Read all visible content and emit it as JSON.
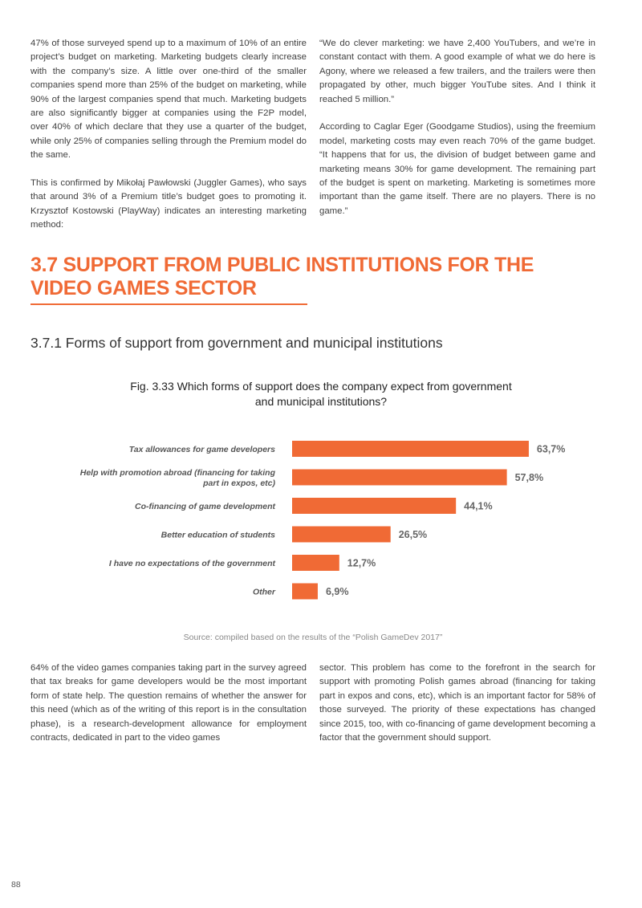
{
  "top_left_paragraphs": [
    "47% of those surveyed spend up to a maximum of 10% of an entire project’s budget on marketing. Marketing budgets clearly increase with the company’s size. A little over one-third of the smaller companies spend more than 25% of the budget on marketing, while 90% of the largest companies spend that much. Marketing budgets are also significantly bigger at companies using the F2P model, over 40% of which declare that they use a quarter of the budget, while only 25% of companies selling through the Premium model do the same.",
    "This is confirmed by Mikołaj Pawłowski (Juggler Games), who says that around 3% of a Premium title’s budget goes to promoting it. Krzysztof Kostowski (PlayWay) indicates an interesting marketing method:"
  ],
  "top_right_paragraphs": [
    "“We do clever marketing: we have 2,400 YouTubers, and we’re in constant contact with them. A good example of what we do here is Agony, where we released a few trailers, and the trailers were then propagated by other, much bigger YouTube sites. And I think it reached 5 million.”",
    "According to Caglar Eger (Goodgame Studios), using the freemium model, marketing costs may even reach 70% of the game budget. “It happens that for us, the division of budget between game and marketing means 30% for game development. The remaining part of the budget is spent on marketing. Marketing is sometimes more important than the game itself. There are no players. There is no game.”"
  ],
  "section_heading": "3.7 SUPPORT FROM PUBLIC INSTITUTIONS FOR THE VIDEO GAMES SECTOR",
  "sub_heading": "3.7.1 Forms of support from government and municipal institutions",
  "figure_title": "Fig. 3.33 Which forms of support does the company expect from government and municipal institutions?",
  "chart_data": {
    "type": "bar",
    "orientation": "horizontal",
    "categories": [
      "Tax allowances for game developers",
      "Help with promotion abroad (financing for taking part in expos, etc)",
      "Co-financing of game development",
      "Better education of students",
      "I have no expectations of the government",
      "Other"
    ],
    "category_lines": [
      [
        "Tax allowances for game developers"
      ],
      [
        "Help with promotion abroad (financing for taking",
        "part in expos, etc)"
      ],
      [
        "Co-financing of game development"
      ],
      [
        "Better education of students"
      ],
      [
        "I have no expectations of the government"
      ],
      [
        "Other"
      ]
    ],
    "values": [
      63.7,
      57.8,
      44.1,
      26.5,
      12.7,
      6.9
    ],
    "value_labels": [
      "63,7%",
      "57,8%",
      "44,1%",
      "26,5%",
      "12,7%",
      "6,9%"
    ],
    "unit": "%",
    "bar_color": "#f06a35",
    "grid": false
  },
  "source": "Source: compiled based on the results of the “Polish GameDev 2017”",
  "bottom_left_paragraphs": [
    "64% of the video games companies taking part in the survey agreed that tax breaks for game developers would be the most important form of state help. The question remains of whether the answer for this need (which as of the writing of this report is in the consultation phase), is a research-development allowance for employment contracts, dedicated in part to the video games"
  ],
  "bottom_right_paragraphs": [
    "sector. This problem has come to the forefront in the search for support with promoting Polish games abroad (financing for taking part in expos and cons, etc), which is an important factor for 58% of those surveyed. The priority of these expectations has changed since 2015, too, with co-financing of game development becoming a factor that the government should support."
  ],
  "page_number": "88",
  "accent_color": "#f06a35"
}
